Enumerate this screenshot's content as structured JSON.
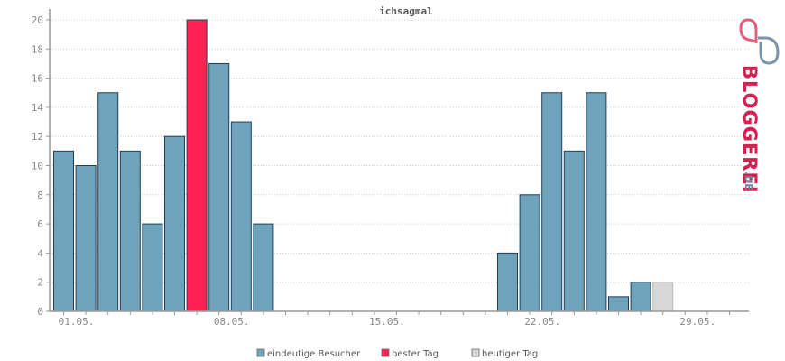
{
  "chart_data": {
    "type": "bar",
    "title": "ichsagmal",
    "ylim": [
      0,
      20
    ],
    "yticks": [
      0,
      2,
      4,
      6,
      8,
      10,
      12,
      14,
      16,
      18,
      20
    ],
    "xtick_labels": [
      {
        "label": "01.05.",
        "day": 1
      },
      {
        "label": "08.05.",
        "day": 8
      },
      {
        "label": "15.05.",
        "day": 15
      },
      {
        "label": "22.05.",
        "day": 22
      },
      {
        "label": "29.05.",
        "day": 29
      }
    ],
    "days": [
      1,
      2,
      3,
      4,
      5,
      6,
      7,
      8,
      9,
      10,
      11,
      12,
      13,
      14,
      15,
      16,
      17,
      18,
      19,
      20,
      21,
      22,
      23,
      24,
      25,
      26,
      27,
      28,
      29,
      30,
      31
    ],
    "values": [
      11,
      10,
      15,
      11,
      6,
      12,
      20,
      17,
      13,
      6,
      0,
      0,
      0,
      0,
      0,
      0,
      0,
      0,
      0,
      0,
      4,
      8,
      15,
      11,
      15,
      1,
      2,
      2,
      0,
      0,
      0
    ],
    "best_day": 7,
    "today": 28,
    "colors": {
      "normal": "#6fa3bb",
      "best": "#ff2255",
      "today": "#d8d8d8"
    },
    "legend": [
      {
        "key": "normal",
        "label": "eindeutige Besucher"
      },
      {
        "key": "best",
        "label": "bester Tag"
      },
      {
        "key": "today",
        "label": "heutiger Tag"
      }
    ]
  },
  "logo": {
    "brand": "BLOGGEREI",
    "suffix": ".DE"
  }
}
